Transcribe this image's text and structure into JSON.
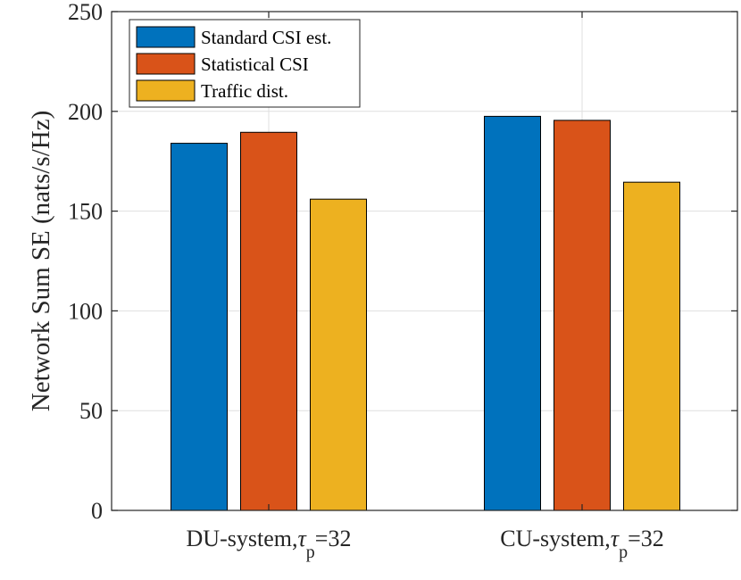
{
  "chart_data": {
    "type": "bar",
    "title": "",
    "xlabel": "",
    "ylabel": "Network Sum SE (nats/s/Hz)",
    "ylim": [
      0,
      250
    ],
    "yticks": [
      0,
      50,
      100,
      150,
      200,
      250
    ],
    "grid": true,
    "legend_position": "top-left",
    "categories": [
      {
        "prefix": "DU-system,",
        "symbol": "τ",
        "subscript": "p",
        "suffix": "=32"
      },
      {
        "prefix": "CU-system,",
        "symbol": "τ",
        "subscript": "p",
        "suffix": "=32"
      }
    ],
    "series": [
      {
        "name": "Standard CSI est.",
        "color": "#0072BD",
        "values": [
          184,
          197.5
        ]
      },
      {
        "name": "Statistical CSI",
        "color": "#D95319",
        "values": [
          189.5,
          195.5
        ]
      },
      {
        "name": "Traffic dist.",
        "color": "#EDB120",
        "values": [
          156,
          164.5
        ]
      }
    ]
  }
}
